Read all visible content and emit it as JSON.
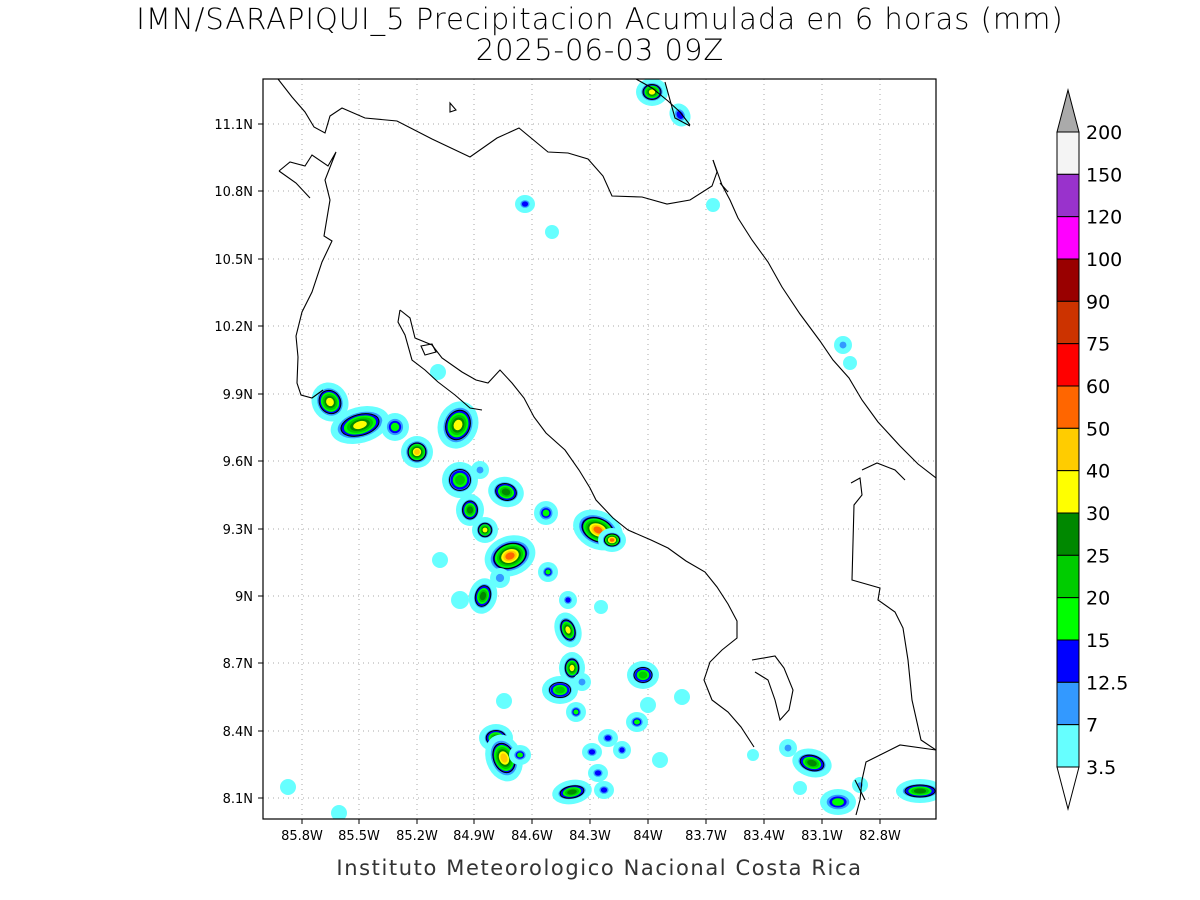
{
  "title_line1": "IMN/SARAPIQUI_5 Precipitacion Acumulada en 6 horas (mm)",
  "title_line2": "2025-06-03 09Z",
  "credit": "Instituto Meteorologico Nacional Costa Rica",
  "map": {
    "lon_range": [
      -86.06,
      -82.6
    ],
    "lat_range": [
      8.0,
      11.32
    ],
    "lat_ticks": [
      "11.1N",
      "10.8N",
      "10.5N",
      "10.2N",
      "9.9N",
      "9.6N",
      "9.3N",
      "9N",
      "8.7N",
      "8.4N",
      "8.1N"
    ],
    "lon_ticks": [
      "85.8W",
      "85.5W",
      "85.2W",
      "84.9W",
      "84.6W",
      "84.3W",
      "84W",
      "83.7W",
      "83.4W",
      "83.1W",
      "82.8W"
    ],
    "grid": "dotted"
  },
  "colorbar": {
    "labels": [
      "200",
      "150",
      "120",
      "100",
      "90",
      "75",
      "60",
      "50",
      "40",
      "30",
      "25",
      "20",
      "15",
      "12.5",
      "7",
      "3.5"
    ],
    "colors": [
      "#f4f4f4",
      "#9932cc",
      "#ff00ff",
      "#990000",
      "#cc3300",
      "#ff0000",
      "#ff6600",
      "#ffcc00",
      "#ffff00",
      "#008800",
      "#00cc00",
      "#00ff00",
      "#0000ff",
      "#3399ff",
      "#66ffff"
    ],
    "top_triangle_color": "#aaaaaa",
    "bottom_triangle_color": "#ffffff"
  },
  "colors": {
    "coastline": "#000000",
    "background": "#ffffff"
  }
}
